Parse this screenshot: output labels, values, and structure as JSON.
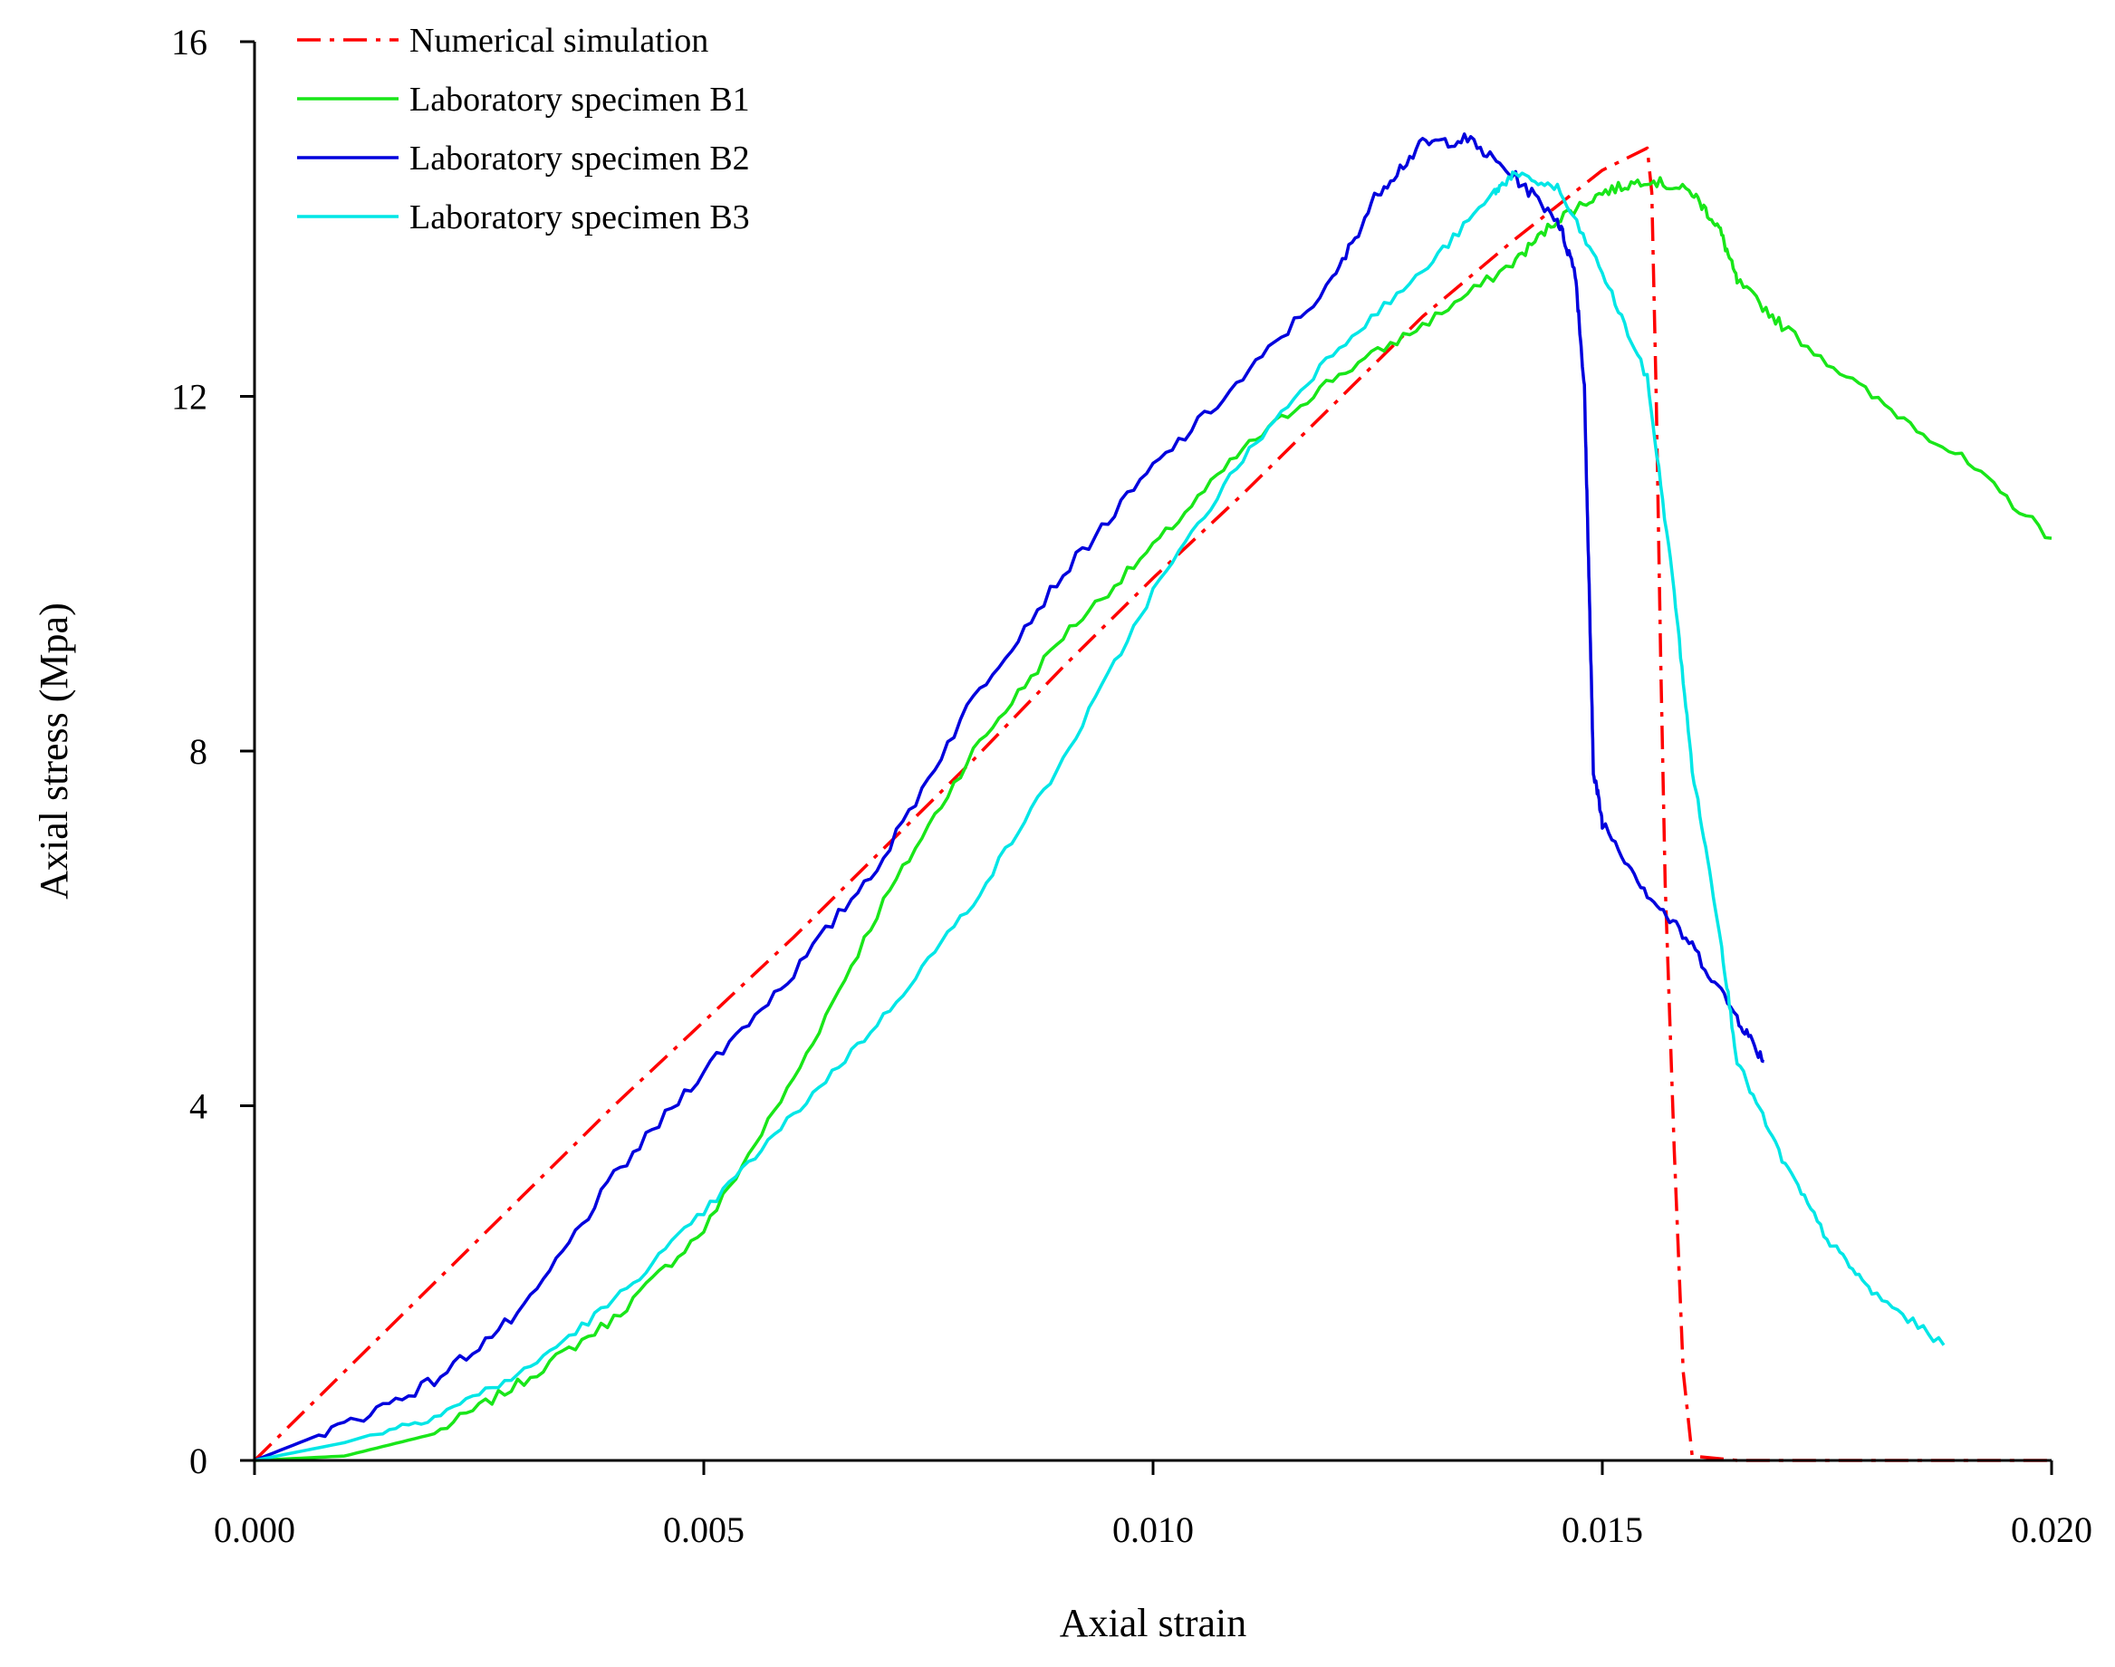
{
  "chart_data": {
    "type": "line",
    "xlabel": "Axial strain",
    "ylabel": "Axial stress (Mpa)",
    "xlim": [
      0,
      0.02
    ],
    "ylim": [
      0,
      16
    ],
    "x_ticks": [
      0,
      0.005,
      0.01,
      0.015,
      0.02
    ],
    "x_tick_labels": [
      "0.000",
      "0.005",
      "0.010",
      "0.015",
      "0.020"
    ],
    "y_ticks": [
      0,
      4,
      8,
      12,
      16
    ],
    "y_tick_labels": [
      "0",
      "4",
      "8",
      "12",
      "16"
    ],
    "grid": false,
    "legend_position": "top-left",
    "series": [
      {
        "name": "Numerical simulation",
        "color": "#ff0000",
        "dash": "dashdot",
        "jitter": 0,
        "points": [
          [
            0,
            0
          ],
          [
            0.001,
            1.0
          ],
          [
            0.002,
            2.0
          ],
          [
            0.003,
            3.0
          ],
          [
            0.004,
            4.0
          ],
          [
            0.005,
            4.95
          ],
          [
            0.006,
            5.9
          ],
          [
            0.007,
            6.9
          ],
          [
            0.008,
            7.9
          ],
          [
            0.009,
            8.95
          ],
          [
            0.01,
            9.95
          ],
          [
            0.011,
            10.9
          ],
          [
            0.012,
            11.9
          ],
          [
            0.013,
            12.9
          ],
          [
            0.014,
            13.75
          ],
          [
            0.0145,
            14.15
          ],
          [
            0.015,
            14.55
          ],
          [
            0.0155,
            14.8
          ],
          [
            0.01555,
            14.3
          ],
          [
            0.0156,
            12.0
          ],
          [
            0.01565,
            9.0
          ],
          [
            0.0157,
            6.5
          ],
          [
            0.0158,
            3.5
          ],
          [
            0.0159,
            1.0
          ],
          [
            0.016,
            0.05
          ],
          [
            0.0165,
            0
          ],
          [
            0.02,
            0
          ]
        ]
      },
      {
        "name": "Laboratory specimen B1",
        "color": "#19e619",
        "dash": "solid",
        "jitter": 0.06,
        "points": [
          [
            0,
            0
          ],
          [
            0.001,
            0.05
          ],
          [
            0.002,
            0.3
          ],
          [
            0.003,
            0.9
          ],
          [
            0.004,
            1.6
          ],
          [
            0.005,
            2.6
          ],
          [
            0.006,
            4.3
          ],
          [
            0.007,
            6.3
          ],
          [
            0.008,
            8.0
          ],
          [
            0.009,
            9.3
          ],
          [
            0.01,
            10.3
          ],
          [
            0.011,
            11.4
          ],
          [
            0.012,
            12.2
          ],
          [
            0.013,
            12.8
          ],
          [
            0.014,
            13.5
          ],
          [
            0.0145,
            14.0
          ],
          [
            0.015,
            14.3
          ],
          [
            0.0155,
            14.45
          ],
          [
            0.016,
            14.3
          ],
          [
            0.0163,
            13.9
          ],
          [
            0.0165,
            13.3
          ],
          [
            0.017,
            12.8
          ],
          [
            0.018,
            12.0
          ],
          [
            0.019,
            11.3
          ],
          [
            0.02,
            10.4
          ]
        ]
      },
      {
        "name": "Laboratory specimen B2",
        "color": "#0000dd",
        "dash": "solid",
        "jitter": 0.07,
        "points": [
          [
            0,
            0
          ],
          [
            0.001,
            0.4
          ],
          [
            0.002,
            0.9
          ],
          [
            0.003,
            1.7
          ],
          [
            0.004,
            3.2
          ],
          [
            0.005,
            4.4
          ],
          [
            0.006,
            5.5
          ],
          [
            0.007,
            6.8
          ],
          [
            0.008,
            8.6
          ],
          [
            0.009,
            10.0
          ],
          [
            0.01,
            11.2
          ],
          [
            0.011,
            12.2
          ],
          [
            0.012,
            13.3
          ],
          [
            0.0125,
            14.3
          ],
          [
            0.013,
            14.85
          ],
          [
            0.0135,
            14.9
          ],
          [
            0.014,
            14.5
          ],
          [
            0.0145,
            14.0
          ],
          [
            0.0147,
            13.4
          ],
          [
            0.0148,
            12.1
          ],
          [
            0.01485,
            10.0
          ],
          [
            0.0149,
            7.8
          ],
          [
            0.015,
            7.2
          ],
          [
            0.0155,
            6.4
          ],
          [
            0.016,
            5.8
          ],
          [
            0.0165,
            5.0
          ],
          [
            0.0168,
            4.5
          ]
        ]
      },
      {
        "name": "Laboratory specimen B3",
        "color": "#00e6e6",
        "dash": "solid",
        "jitter": 0.05,
        "points": [
          [
            0,
            0
          ],
          [
            0.001,
            0.2
          ],
          [
            0.002,
            0.5
          ],
          [
            0.003,
            1.0
          ],
          [
            0.004,
            1.8
          ],
          [
            0.005,
            2.8
          ],
          [
            0.006,
            3.9
          ],
          [
            0.007,
            5.0
          ],
          [
            0.008,
            6.3
          ],
          [
            0.009,
            7.9
          ],
          [
            0.01,
            9.8
          ],
          [
            0.011,
            11.3
          ],
          [
            0.012,
            12.5
          ],
          [
            0.013,
            13.4
          ],
          [
            0.0138,
            14.3
          ],
          [
            0.014,
            14.5
          ],
          [
            0.0145,
            14.35
          ],
          [
            0.015,
            13.4
          ],
          [
            0.0155,
            12.2
          ],
          [
            0.0158,
            9.8
          ],
          [
            0.016,
            7.8
          ],
          [
            0.0163,
            6.0
          ],
          [
            0.0165,
            4.5
          ],
          [
            0.017,
            3.4
          ],
          [
            0.0175,
            2.5
          ],
          [
            0.018,
            1.9
          ],
          [
            0.0188,
            1.3
          ]
        ]
      }
    ]
  }
}
